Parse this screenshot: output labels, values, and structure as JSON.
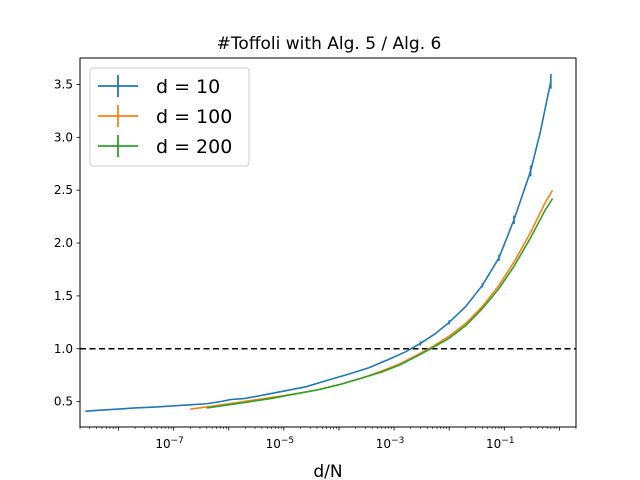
{
  "chart_data": {
    "type": "line",
    "title": "#Toffoli with Alg. 5 / Alg. 6",
    "xlabel": "d/N",
    "ylabel": "",
    "x_scale": "log",
    "xlim": [
      2e-09,
      2
    ],
    "ylim": [
      0.26,
      3.75
    ],
    "x_ticks": [
      {
        "value": 1e-07,
        "base": "10",
        "exp": "−7"
      },
      {
        "value": 1e-05,
        "base": "10",
        "exp": "−5"
      },
      {
        "value": 0.001,
        "base": "10",
        "exp": "−3"
      },
      {
        "value": 0.1,
        "base": "10",
        "exp": "−1"
      }
    ],
    "y_ticks": [
      {
        "value": 0.5,
        "label": "0.5"
      },
      {
        "value": 1.0,
        "label": "1.0"
      },
      {
        "value": 1.5,
        "label": "1.5"
      },
      {
        "value": 2.0,
        "label": "2.0"
      },
      {
        "value": 2.5,
        "label": "2.5"
      },
      {
        "value": 3.0,
        "label": "3.0"
      },
      {
        "value": 3.5,
        "label": "3.5"
      }
    ],
    "reference_line": {
      "y": 1.0,
      "style": "dashed",
      "color": "#000000"
    },
    "grid": false,
    "legend_position": "top-left",
    "series": [
      {
        "name": "d = 10",
        "color": "#1f77b4",
        "points": [
          [
            2.5e-09,
            0.41
          ],
          [
            5e-09,
            0.42
          ],
          [
            1e-08,
            0.43
          ],
          [
            2e-08,
            0.44
          ],
          [
            5e-08,
            0.45
          ],
          [
            1e-07,
            0.46
          ],
          [
            2e-07,
            0.47
          ],
          [
            4e-07,
            0.48
          ],
          [
            7e-07,
            0.5
          ],
          [
            1.1e-06,
            0.52
          ],
          [
            2e-06,
            0.53
          ],
          [
            4e-06,
            0.56
          ],
          [
            1e-05,
            0.6
          ],
          [
            2.5e-05,
            0.64
          ],
          [
            6e-05,
            0.7
          ],
          [
            0.00015,
            0.76
          ],
          [
            0.00035,
            0.82
          ],
          [
            0.0008,
            0.9
          ],
          [
            0.0016,
            0.97
          ],
          [
            0.003,
            1.05
          ],
          [
            0.0055,
            1.14
          ],
          [
            0.01,
            1.25
          ],
          [
            0.02,
            1.4
          ],
          [
            0.04,
            1.6
          ],
          [
            0.08,
            1.86
          ],
          [
            0.15,
            2.22
          ],
          [
            0.3,
            2.68
          ],
          [
            0.45,
            3.05
          ],
          [
            0.7,
            3.53
          ]
        ],
        "error_bars": [
          [
            0.003,
            1.05,
            0.02
          ],
          [
            0.01,
            1.25,
            0.02
          ],
          [
            0.04,
            1.6,
            0.02
          ],
          [
            0.08,
            1.86,
            0.03
          ],
          [
            0.15,
            2.22,
            0.04
          ],
          [
            0.3,
            2.68,
            0.05
          ],
          [
            0.7,
            3.53,
            0.07
          ]
        ]
      },
      {
        "name": "d = 100",
        "color": "#ff7f0e",
        "points": [
          [
            2e-07,
            0.43
          ],
          [
            4e-07,
            0.45
          ],
          [
            1e-06,
            0.48
          ],
          [
            2.5e-06,
            0.51
          ],
          [
            6e-06,
            0.54
          ],
          [
            1.5e-05,
            0.57
          ],
          [
            4e-05,
            0.61
          ],
          [
            0.0001,
            0.66
          ],
          [
            0.00025,
            0.72
          ],
          [
            0.0006,
            0.79
          ],
          [
            0.0013,
            0.86
          ],
          [
            0.0026,
            0.94
          ],
          [
            0.005,
            1.02
          ],
          [
            0.01,
            1.12
          ],
          [
            0.02,
            1.24
          ],
          [
            0.04,
            1.4
          ],
          [
            0.08,
            1.6
          ],
          [
            0.15,
            1.82
          ],
          [
            0.3,
            2.1
          ],
          [
            0.55,
            2.38
          ],
          [
            0.75,
            2.5
          ]
        ]
      },
      {
        "name": "d = 200",
        "color": "#2ca02c",
        "points": [
          [
            4e-07,
            0.44
          ],
          [
            1e-06,
            0.47
          ],
          [
            2.5e-06,
            0.5
          ],
          [
            6e-06,
            0.53
          ],
          [
            1.5e-05,
            0.57
          ],
          [
            4e-05,
            0.61
          ],
          [
            0.0001,
            0.66
          ],
          [
            0.00025,
            0.72
          ],
          [
            0.0006,
            0.78
          ],
          [
            0.0013,
            0.85
          ],
          [
            0.0026,
            0.93
          ],
          [
            0.005,
            1.01
          ],
          [
            0.01,
            1.1
          ],
          [
            0.02,
            1.22
          ],
          [
            0.04,
            1.38
          ],
          [
            0.08,
            1.57
          ],
          [
            0.15,
            1.78
          ],
          [
            0.3,
            2.05
          ],
          [
            0.55,
            2.31
          ],
          [
            0.75,
            2.42
          ]
        ]
      }
    ]
  }
}
